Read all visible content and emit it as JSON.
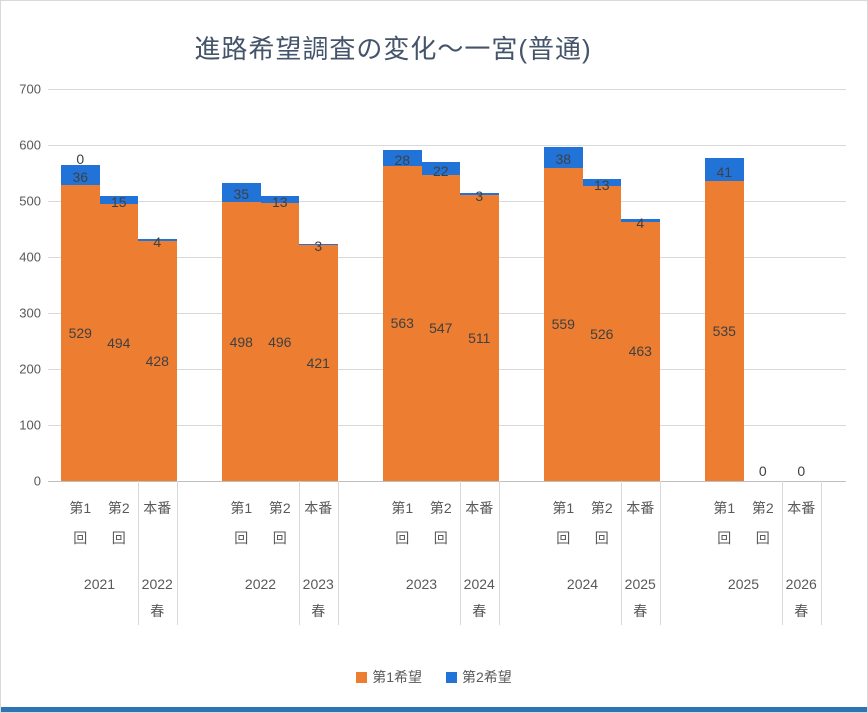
{
  "chart_data": {
    "type": "bar",
    "stacked": true,
    "title": "進路希望調査の変化～一宮(普通)",
    "xlabel": "",
    "ylabel": "",
    "ylim": [
      0,
      700
    ],
    "y_ticks": [
      0,
      100,
      200,
      300,
      400,
      500,
      600,
      700
    ],
    "grid": true,
    "legend_position": "bottom",
    "series": [
      {
        "name": "第1希望",
        "color": "#ED7D31"
      },
      {
        "name": "第2希望",
        "color": "#2273D8"
      }
    ],
    "groups": [
      {
        "year_label": "2021",
        "spring_label_lines": [
          "2022",
          "春"
        ],
        "bars": [
          {
            "category_lines": [
              "第1",
              "回"
            ],
            "first": 529,
            "second": 36,
            "top_label": "0"
          },
          {
            "category_lines": [
              "第2",
              "回"
            ],
            "first": 494,
            "second": 15
          },
          {
            "category_lines": [
              "本番"
            ],
            "first": 428,
            "second": 4
          }
        ]
      },
      {
        "year_label": "2022",
        "spring_label_lines": [
          "2023",
          "春"
        ],
        "bars": [
          {
            "category_lines": [
              "第1",
              "回"
            ],
            "first": 498,
            "second": 35
          },
          {
            "category_lines": [
              "第2",
              "回"
            ],
            "first": 496,
            "second": 13
          },
          {
            "category_lines": [
              "本番"
            ],
            "first": 421,
            "second": 3
          }
        ]
      },
      {
        "year_label": "2023",
        "spring_label_lines": [
          "2024",
          "春"
        ],
        "bars": [
          {
            "category_lines": [
              "第1",
              "回"
            ],
            "first": 563,
            "second": 28
          },
          {
            "category_lines": [
              "第2",
              "回"
            ],
            "first": 547,
            "second": 22
          },
          {
            "category_lines": [
              "本番"
            ],
            "first": 511,
            "second": 3
          }
        ]
      },
      {
        "year_label": "2024",
        "spring_label_lines": [
          "2025",
          "春"
        ],
        "bars": [
          {
            "category_lines": [
              "第1",
              "回"
            ],
            "first": 559,
            "second": 38
          },
          {
            "category_lines": [
              "第2",
              "回"
            ],
            "first": 526,
            "second": 13
          },
          {
            "category_lines": [
              "本番"
            ],
            "first": 463,
            "second": 4
          }
        ]
      },
      {
        "year_label": "2025",
        "spring_label_lines": [
          "2026",
          "春"
        ],
        "bars": [
          {
            "category_lines": [
              "第1",
              "回"
            ],
            "first": 535,
            "second": 41
          },
          {
            "category_lines": [
              "第2",
              "回"
            ],
            "first": 0,
            "second": null
          },
          {
            "category_lines": [
              "本番"
            ],
            "first": 0,
            "second": null
          }
        ]
      }
    ]
  },
  "colors": {
    "grid": "#D9D9D9",
    "axis": "#BFBFBF",
    "bottom_bar": "#2E74B5",
    "frame_border": "#D9D9D9"
  }
}
